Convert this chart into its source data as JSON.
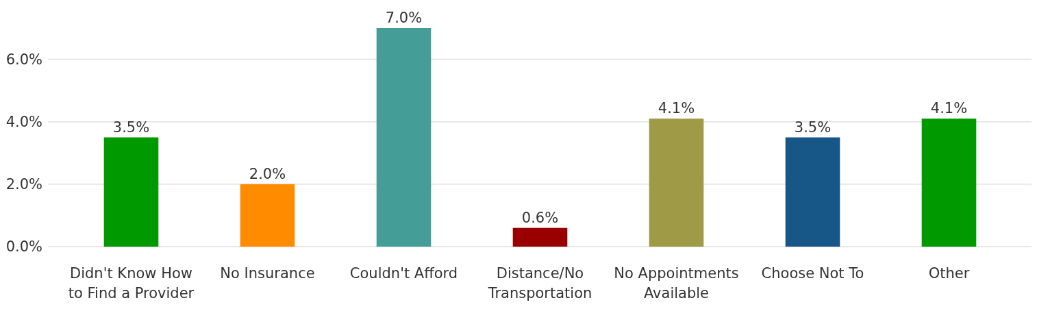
{
  "chart_data": {
    "type": "bar",
    "categories": [
      "Didn't Know How to Find a Provider",
      "No Insurance",
      "Couldn't Afford",
      "Distance/No Transportation",
      "No Appointments Available",
      "Choose Not To",
      "Other"
    ],
    "values": [
      3.5,
      2.0,
      7.0,
      0.6,
      4.1,
      3.5,
      4.1
    ],
    "colors": [
      "#009900",
      "#ff8c00",
      "#449e97",
      "#990000",
      "#9e9a45",
      "#165788",
      "#009900"
    ],
    "value_labels": [
      "3.5%",
      "2.0%",
      "7.0%",
      "0.6%",
      "4.1%",
      "3.5%",
      "4.1%"
    ],
    "ylim": [
      0,
      7
    ],
    "yticks": [
      {
        "value": 0,
        "label": "0.0%"
      },
      {
        "value": 2,
        "label": "2.0%"
      },
      {
        "value": 4,
        "label": "4.0%"
      },
      {
        "value": 6,
        "label": "6.0%"
      }
    ],
    "grid": "y"
  }
}
